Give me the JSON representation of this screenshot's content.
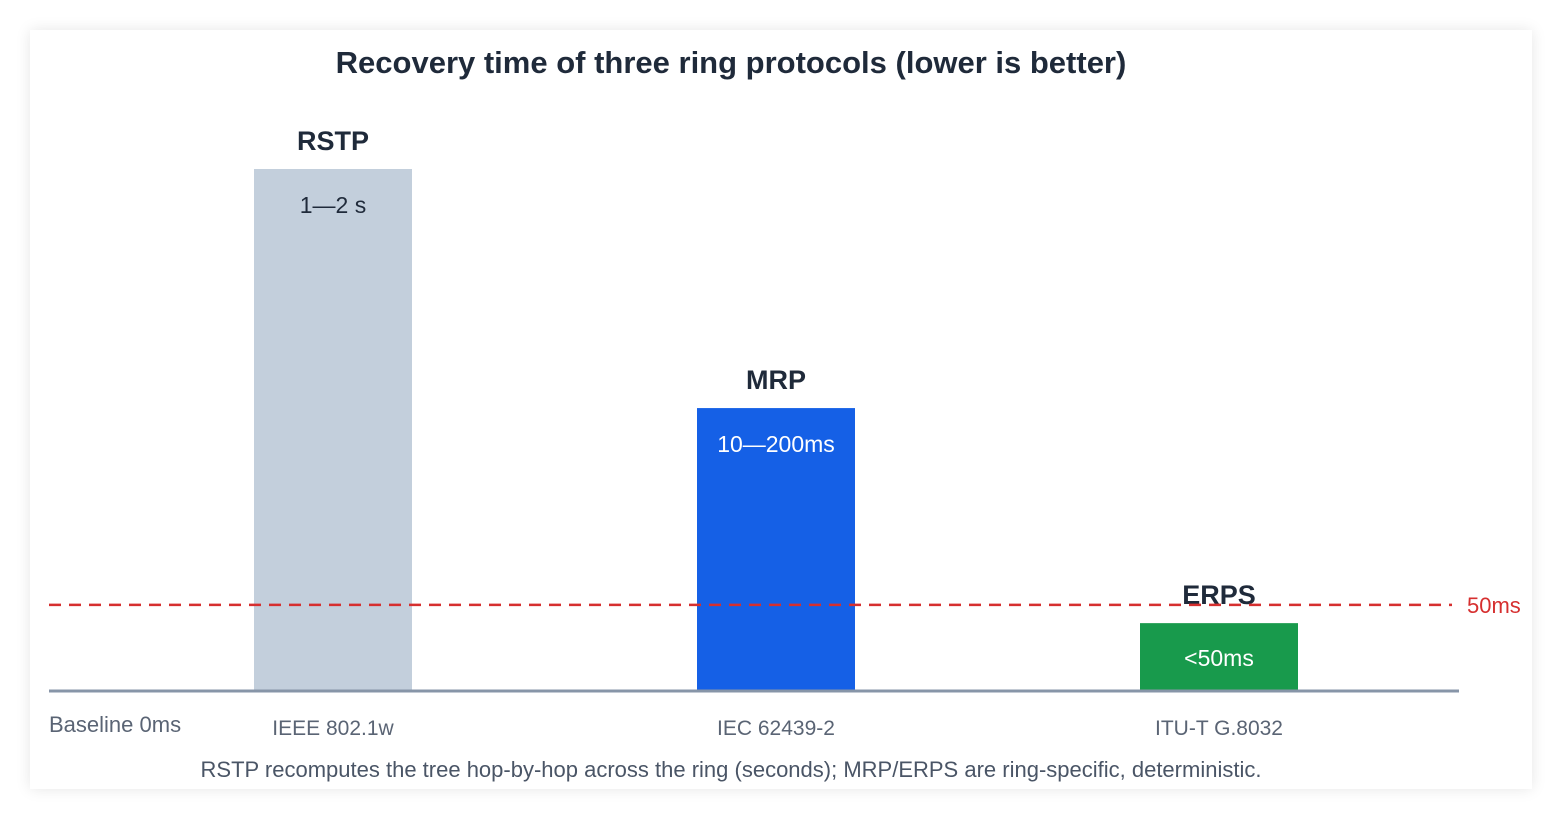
{
  "chart_data": {
    "type": "bar",
    "title": "Recovery time of three ring protocols (lower is better)",
    "categories": [
      "IEEE 802.1w",
      "IEC 62439-2",
      "ITU-T G.8032"
    ],
    "series": [
      {
        "names": [
          "RSTP",
          "MRP",
          "ERPS"
        ],
        "value_labels": [
          "1—2 s",
          "10—200ms",
          "<50ms"
        ],
        "relative_heights": [
          1.0,
          0.542,
          0.13
        ],
        "colors": [
          "#c3cfdc",
          "#1560e6",
          "#189a4c"
        ],
        "label_colors": [
          "#1f2a3a",
          "#ffffff",
          "#ffffff"
        ]
      }
    ],
    "baseline_label": "Baseline 0ms",
    "reference_line": {
      "label": "50ms",
      "relative_height": 0.165,
      "color": "#d62f2f"
    },
    "footnote": "RSTP recomputes the tree hop-by-hop across the ring (seconds); MRP/ERPS are ring-specific, deterministic.",
    "grid": false,
    "legend": "none",
    "axis_color": "#8795a8"
  }
}
